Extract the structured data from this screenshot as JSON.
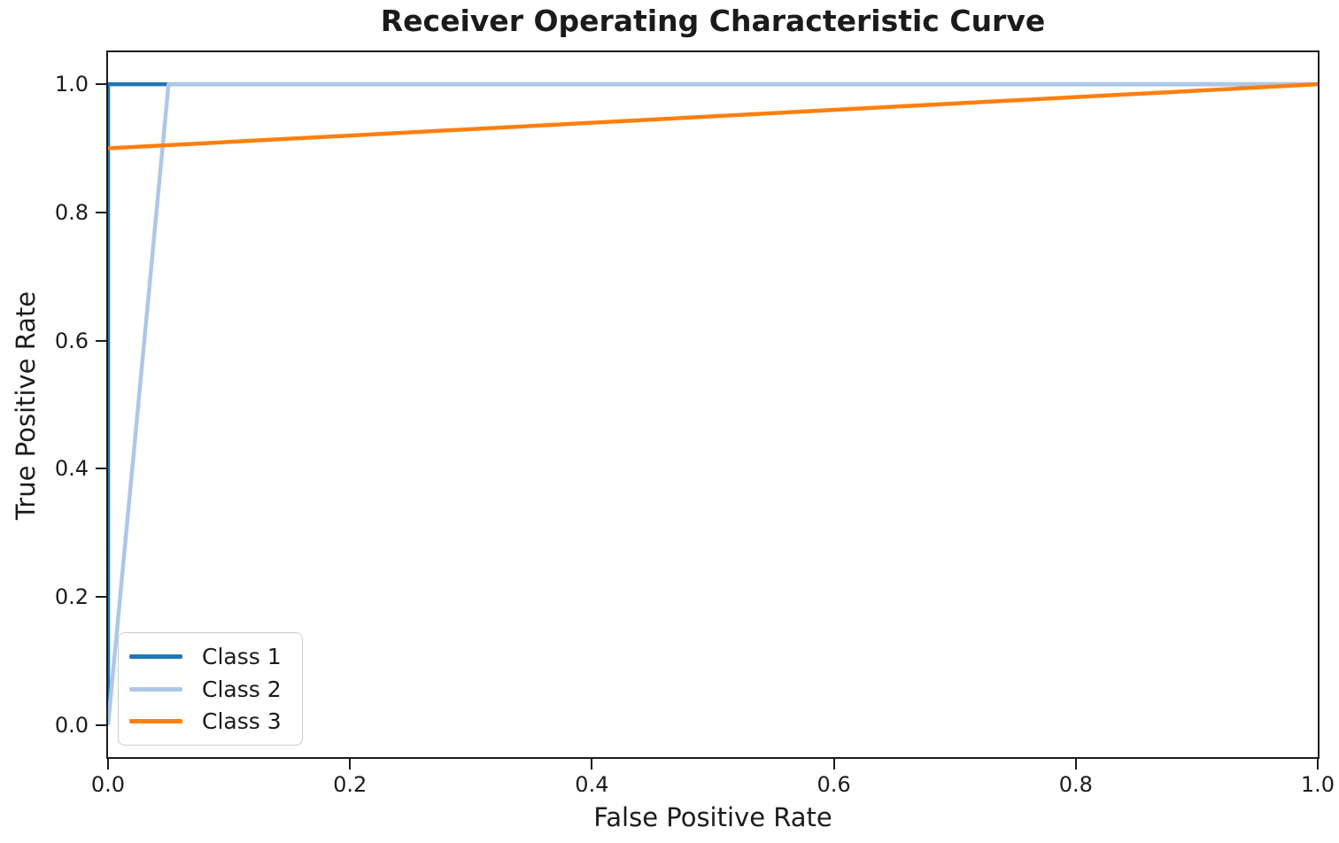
{
  "chart_data": {
    "type": "line",
    "title": "Receiver Operating Characteristic Curve",
    "xlabel": "False Positive Rate",
    "ylabel": "True Positive Rate",
    "xlim": [
      0.0,
      1.0
    ],
    "ylim": [
      -0.05,
      1.05
    ],
    "x_tick_labels": [
      "0.0",
      "0.2",
      "0.4",
      "0.6",
      "0.8",
      "1.0"
    ],
    "y_tick_labels": [
      "0.0",
      "0.2",
      "0.4",
      "0.6",
      "0.8",
      "1.0"
    ],
    "grid": false,
    "legend_position": "lower-left",
    "series": [
      {
        "name": "Class 1",
        "color": "#1f77b4",
        "points": [
          [
            0.0,
            0.0
          ],
          [
            0.0,
            1.0
          ],
          [
            1.0,
            1.0
          ]
        ]
      },
      {
        "name": "Class 2",
        "color": "#aec7e8",
        "points": [
          [
            0.0,
            0.0
          ],
          [
            0.05,
            1.0
          ],
          [
            1.0,
            1.0
          ]
        ]
      },
      {
        "name": "Class 3",
        "color": "#ff7f0e",
        "points": [
          [
            0.0,
            0.9
          ],
          [
            1.0,
            1.0
          ]
        ]
      }
    ],
    "colors": {
      "axis": "#1c1c1c",
      "text": "#1c1c1c",
      "legend_border": "#cbcbcb"
    }
  }
}
